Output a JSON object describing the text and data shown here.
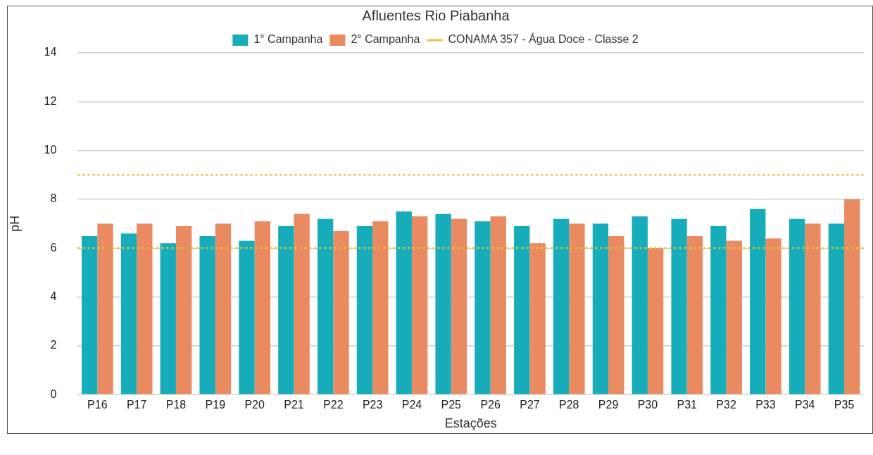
{
  "chart_data": {
    "type": "bar",
    "title": "Afluentes Rio Piabanha",
    "xlabel": "Estações",
    "ylabel": "pH",
    "categories": [
      "P16",
      "P17",
      "P18",
      "P19",
      "P20",
      "P21",
      "P22",
      "P23",
      "P24",
      "P25",
      "P26",
      "P27",
      "P28",
      "P29",
      "P30",
      "P31",
      "P32",
      "P33",
      "P34",
      "P35"
    ],
    "series": [
      {
        "name": "1° Campanha",
        "color": "#17acb9",
        "values": [
          6.5,
          6.6,
          6.2,
          6.5,
          6.3,
          6.9,
          7.2,
          6.9,
          7.5,
          7.4,
          7.1,
          6.9,
          7.2,
          7.0,
          7.3,
          7.2,
          6.9,
          7.6,
          7.2,
          7.0
        ]
      },
      {
        "name": "2° Campanha",
        "color": "#ea8a60",
        "values": [
          7.0,
          7.0,
          6.9,
          7.0,
          7.1,
          7.4,
          6.7,
          7.1,
          7.3,
          7.2,
          7.3,
          6.2,
          7.0,
          6.5,
          6.0,
          6.5,
          6.3,
          6.4,
          7.0,
          8.0
        ]
      }
    ],
    "ylim": [
      0,
      14
    ],
    "yticks": [
      0,
      2,
      4,
      6,
      8,
      10,
      12,
      14
    ],
    "grid": "y",
    "legend": "top",
    "ref_lines": [
      {
        "axis": "y",
        "value": 6,
        "label": "CONAMA 357 - Água Doce - Classe 2",
        "color": "#e3c63e",
        "line_style": "dotted"
      },
      {
        "axis": "y",
        "value": 9,
        "color": "#e3c63e",
        "line_style": "dotted"
      }
    ]
  }
}
